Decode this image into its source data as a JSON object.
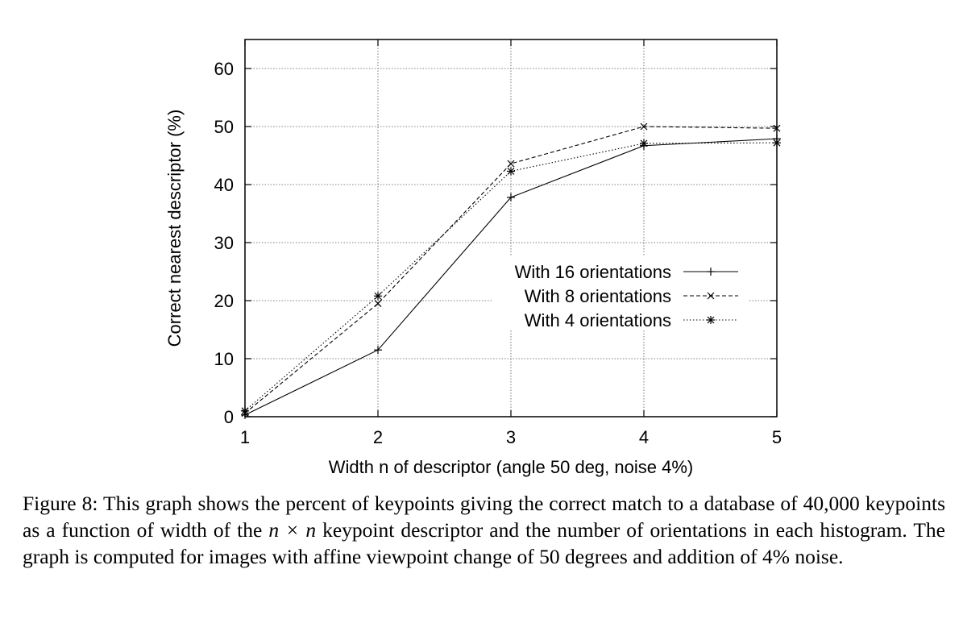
{
  "chart_data": {
    "type": "line",
    "xlabel": "Width n of descriptor (angle 50 deg, noise 4%)",
    "ylabel": "Correct nearest descriptor (%)",
    "xlim": [
      1,
      5
    ],
    "ylim": [
      0,
      65
    ],
    "xticks": [
      1,
      2,
      3,
      4,
      5
    ],
    "yticks": [
      0,
      10,
      20,
      30,
      40,
      50,
      60
    ],
    "grid": true,
    "legend_position": "center-right",
    "x": [
      1,
      2,
      3,
      4,
      5
    ],
    "series": [
      {
        "name": "With 16 orientations",
        "marker": "plus",
        "dash": "solid",
        "values": [
          0.3,
          11.5,
          37.8,
          46.7,
          47.9
        ]
      },
      {
        "name": "With 8 orientations",
        "marker": "cross",
        "dash": "dashed",
        "values": [
          0.6,
          19.5,
          43.6,
          50.0,
          49.7
        ]
      },
      {
        "name": "With 4 orientations",
        "marker": "star",
        "dash": "dotted",
        "values": [
          1.0,
          20.8,
          42.3,
          47.1,
          47.2
        ]
      }
    ]
  },
  "caption": {
    "prefix": "Figure 8: This graph shows the percent of keypoints giving the correct match to a database of 40,000 keypoints as a function of width of the ",
    "math": "n × n",
    "suffix": " keypoint descriptor and the number of orientations in each histogram. The graph is computed for images with affine viewpoint change of 50 degrees and addition of 4% noise."
  }
}
